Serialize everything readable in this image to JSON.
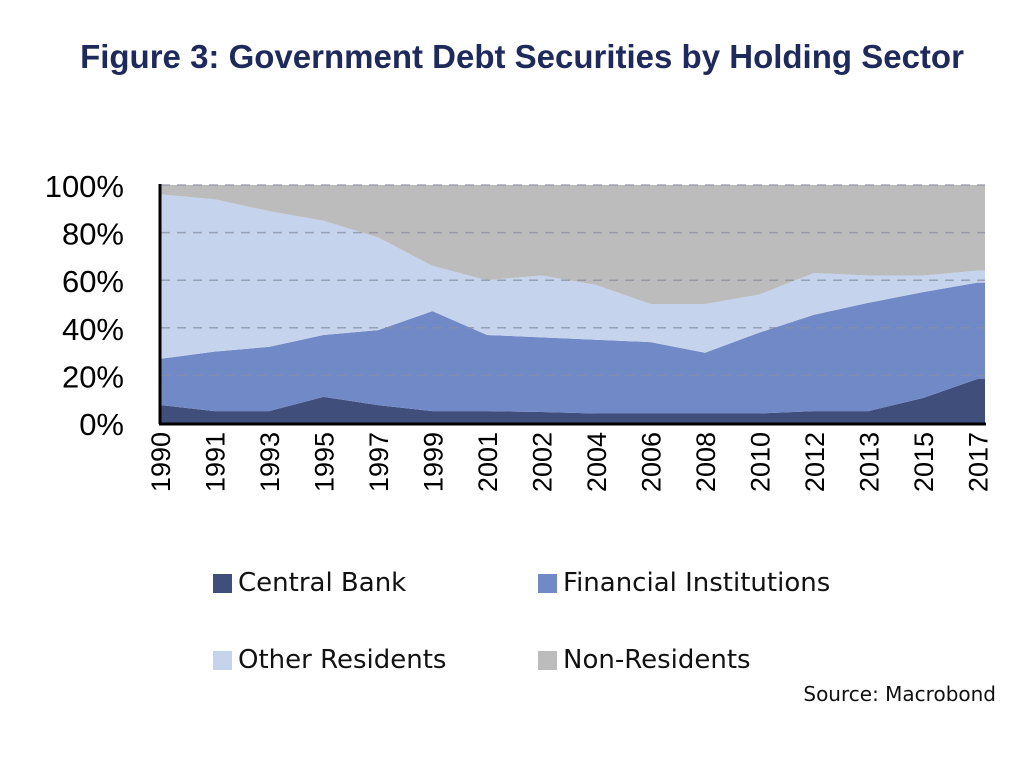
{
  "chart_data": {
    "type": "area",
    "stacked": true,
    "normalized_percent": true,
    "title": "Figure 3: Government Debt Securities by Holding Sector",
    "xlabel": "",
    "ylabel": "",
    "categories": [
      "1990",
      "1991",
      "1993",
      "1995",
      "1997",
      "1999",
      "2001",
      "2002",
      "2004",
      "2006",
      "2008",
      "2010",
      "2012",
      "2013",
      "2015",
      "2017"
    ],
    "y_ticks": [
      "0%",
      "20%",
      "40%",
      "60%",
      "80%",
      "100%"
    ],
    "ylim": [
      0,
      100
    ],
    "grid": "horizontal dashed",
    "legend": "bottom",
    "series": [
      {
        "name": "Central Bank",
        "color": "#3f4e7a",
        "values": [
          7.5,
          5,
          5,
          11,
          7.5,
          5,
          5,
          4.6,
          4,
          4,
          4,
          4,
          5,
          5,
          10.5,
          18.5
        ]
      },
      {
        "name": "Financial Institutions",
        "color": "#7289c8",
        "values": [
          19.5,
          25,
          27,
          26,
          31.5,
          42,
          32,
          31.4,
          31,
          30,
          25.5,
          34,
          40.5,
          45.5,
          44.5,
          40.5
        ]
      },
      {
        "name": "Other Residents",
        "color": "#c5d3ec",
        "values": [
          69,
          64,
          57,
          48,
          39,
          19,
          23,
          26,
          23,
          16,
          20.5,
          16,
          17.5,
          11.5,
          7,
          5
        ]
      },
      {
        "name": "Non-Residents",
        "color": "#bcbcbc",
        "values": [
          4,
          6,
          11,
          15,
          22,
          34,
          40,
          38,
          42,
          50,
          50,
          46,
          37,
          38,
          38,
          36
        ]
      }
    ]
  },
  "source": "Source: Macrobond",
  "colors": {
    "title": "#1f2a5c"
  }
}
